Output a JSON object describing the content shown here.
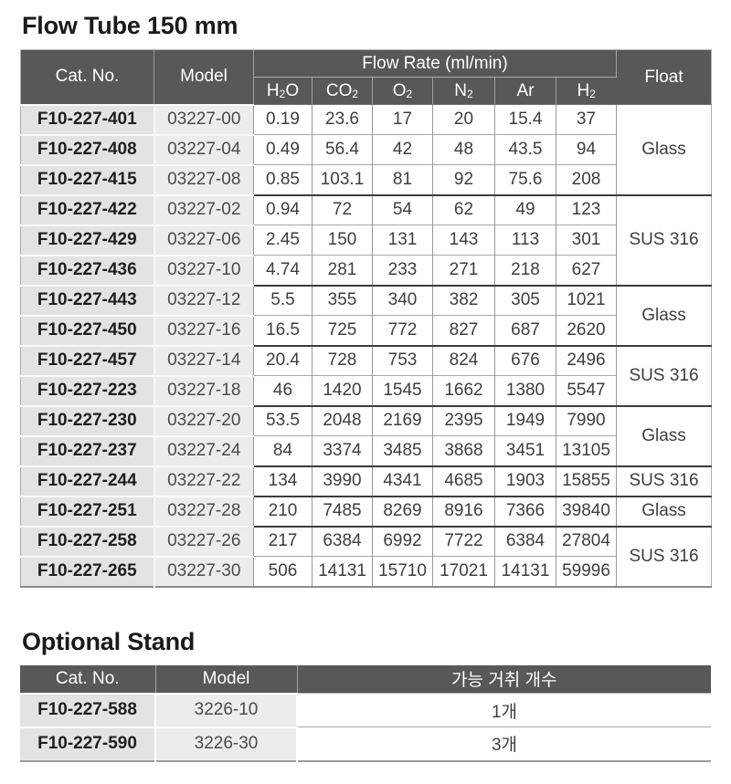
{
  "colors": {
    "header_bg": "#58585a",
    "header_text": "#ffffff",
    "cat_col_bg": "#e2e3e5",
    "model_col_bg": "#ebeced",
    "group_border": "#3a3b3d",
    "row_border": "#a6a7a9"
  },
  "flow_tube": {
    "title": "Flow Tube 150 mm",
    "table": {
      "col_headers": {
        "cat_no": "Cat. No.",
        "model": "Model",
        "flow_rate_group": "Flow Rate (ml/min)",
        "float": "Float"
      },
      "gas_headers": [
        {
          "pre": "H",
          "sub": "2",
          "post": "O"
        },
        {
          "pre": "CO",
          "sub": "2",
          "post": ""
        },
        {
          "pre": "O",
          "sub": "2",
          "post": ""
        },
        {
          "pre": "N",
          "sub": "2",
          "post": ""
        },
        {
          "pre": "Ar",
          "sub": "",
          "post": ""
        },
        {
          "pre": "H",
          "sub": "2",
          "post": ""
        }
      ],
      "rows": [
        {
          "cat_no": "F10-227-401",
          "model": "03227-00",
          "values": [
            "0.19",
            "23.6",
            "17",
            "20",
            "15.4",
            "37"
          ]
        },
        {
          "cat_no": "F10-227-408",
          "model": "03227-04",
          "values": [
            "0.49",
            "56.4",
            "42",
            "48",
            "43.5",
            "94"
          ]
        },
        {
          "cat_no": "F10-227-415",
          "model": "03227-08",
          "values": [
            "0.85",
            "103.1",
            "81",
            "92",
            "75.6",
            "208"
          ]
        },
        {
          "cat_no": "F10-227-422",
          "model": "03227-02",
          "values": [
            "0.94",
            "72",
            "54",
            "62",
            "49",
            "123"
          ]
        },
        {
          "cat_no": "F10-227-429",
          "model": "03227-06",
          "values": [
            "2.45",
            "150",
            "131",
            "143",
            "113",
            "301"
          ]
        },
        {
          "cat_no": "F10-227-436",
          "model": "03227-10",
          "values": [
            "4.74",
            "281",
            "233",
            "271",
            "218",
            "627"
          ]
        },
        {
          "cat_no": "F10-227-443",
          "model": "03227-12",
          "values": [
            "5.5",
            "355",
            "340",
            "382",
            "305",
            "1021"
          ]
        },
        {
          "cat_no": "F10-227-450",
          "model": "03227-16",
          "values": [
            "16.5",
            "725",
            "772",
            "827",
            "687",
            "2620"
          ]
        },
        {
          "cat_no": "F10-227-457",
          "model": "03227-14",
          "values": [
            "20.4",
            "728",
            "753",
            "824",
            "676",
            "2496"
          ]
        },
        {
          "cat_no": "F10-227-223",
          "model": "03227-18",
          "values": [
            "46",
            "1420",
            "1545",
            "1662",
            "1380",
            "5547"
          ]
        },
        {
          "cat_no": "F10-227-230",
          "model": "03227-20",
          "values": [
            "53.5",
            "2048",
            "2169",
            "2395",
            "1949",
            "7990"
          ]
        },
        {
          "cat_no": "F10-227-237",
          "model": "03227-24",
          "values": [
            "84",
            "3374",
            "3485",
            "3868",
            "3451",
            "13105"
          ]
        },
        {
          "cat_no": "F10-227-244",
          "model": "03227-22",
          "values": [
            "134",
            "3990",
            "4341",
            "4685",
            "1903",
            "15855"
          ]
        },
        {
          "cat_no": "F10-227-251",
          "model": "03227-28",
          "values": [
            "210",
            "7485",
            "8269",
            "8916",
            "7366",
            "39840"
          ]
        },
        {
          "cat_no": "F10-227-258",
          "model": "03227-26",
          "values": [
            "217",
            "6384",
            "6992",
            "7722",
            "6384",
            "27804"
          ]
        },
        {
          "cat_no": "F10-227-265",
          "model": "03227-30",
          "values": [
            "506",
            "14131",
            "15710",
            "17021",
            "14131",
            "59996"
          ]
        }
      ],
      "float_groups": [
        {
          "label": "Glass",
          "span": 3
        },
        {
          "label": "SUS 316",
          "span": 3
        },
        {
          "label": "Glass",
          "span": 2
        },
        {
          "label": "SUS 316",
          "span": 2
        },
        {
          "label": "Glass",
          "span": 2
        },
        {
          "label": "SUS 316",
          "span": 1
        },
        {
          "label": "Glass",
          "span": 1
        },
        {
          "label": "SUS 316",
          "span": 2
        }
      ]
    }
  },
  "optional_stand": {
    "title": "Optional Stand",
    "table": {
      "headers": {
        "cat_no": "Cat. No.",
        "model": "Model",
        "count": "가능 거취 개수"
      },
      "rows": [
        {
          "cat_no": "F10-227-588",
          "model": "3226-10",
          "count": "1개"
        },
        {
          "cat_no": "F10-227-590",
          "model": "3226-30",
          "count": "3개"
        }
      ]
    }
  }
}
